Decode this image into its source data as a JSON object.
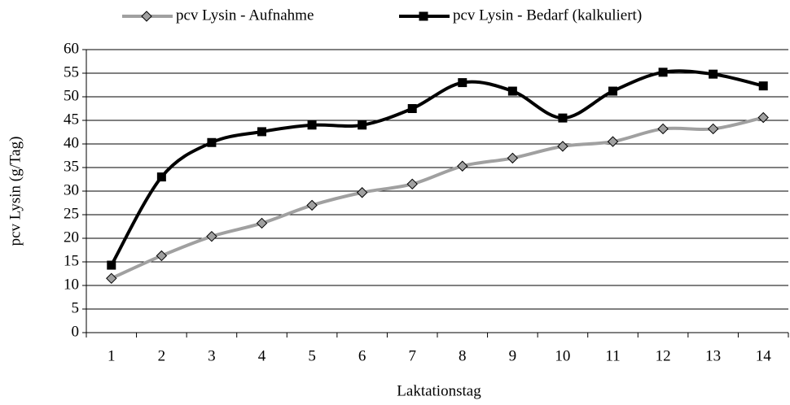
{
  "chart_data": {
    "type": "line",
    "x_label": "Laktationstag",
    "y_label": "pcv Lysin (g/Tag)",
    "categories": [
      "1",
      "2",
      "3",
      "4",
      "5",
      "6",
      "7",
      "8",
      "9",
      "10",
      "11",
      "12",
      "13",
      "14"
    ],
    "series": [
      {
        "name": "pcv Lysin - Aufnahme",
        "color": "#a0a0a0",
        "marker": "diamond",
        "marker_color": "#a0a0a0",
        "values": [
          11.5,
          16.3,
          20.4,
          23.2,
          27,
          29.7,
          31.5,
          35.3,
          37,
          39.5,
          40.5,
          43.2,
          43.2,
          45.6
        ]
      },
      {
        "name": "pcv Lysin - Bedarf (kalkuliert)",
        "color": "#000000",
        "marker": "square",
        "marker_color": "#000000",
        "values": [
          14.3,
          33,
          40.3,
          42.6,
          44,
          44,
          47.5,
          53,
          51.2,
          45.5,
          51.2,
          55.2,
          54.8,
          52.3
        ]
      }
    ],
    "ylim": [
      0,
      60
    ],
    "yticks": [
      0,
      5,
      10,
      15,
      20,
      25,
      30,
      35,
      40,
      45,
      50,
      55,
      60
    ],
    "grid": true,
    "smooth": true,
    "legend": "top"
  }
}
